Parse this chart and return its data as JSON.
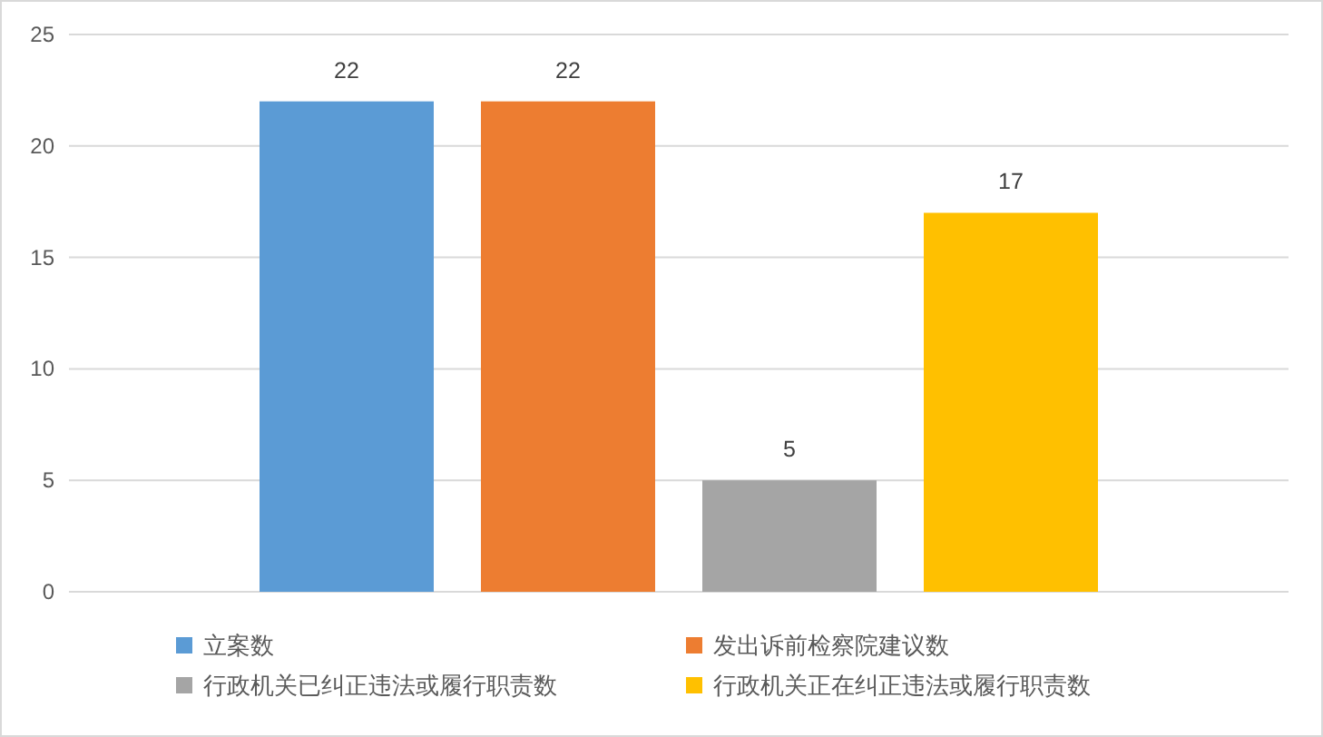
{
  "chart_data": {
    "type": "bar",
    "categories": [
      null
    ],
    "series": [
      {
        "name": "立案数",
        "color": "#5b9bd5",
        "values": [
          22
        ]
      },
      {
        "name": "发出诉前检察院建议数",
        "color": "#ed7d31",
        "values": [
          22
        ]
      },
      {
        "name": "行政机关已纠正违法或履行职责数",
        "color": "#a5a5a5",
        "values": [
          5
        ]
      },
      {
        "name": "行政机关正在纠正违法或履行职责数",
        "color": "#ffc000",
        "values": [
          17
        ]
      }
    ],
    "ylim": [
      0,
      25
    ],
    "yticks": [
      0,
      5,
      10,
      15,
      20,
      25
    ],
    "grid": "y",
    "legend": "bottom",
    "data_labels": true
  }
}
